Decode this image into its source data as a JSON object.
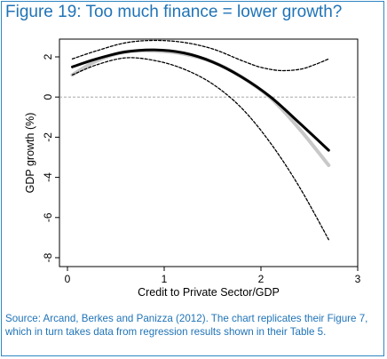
{
  "figure": {
    "title": "Figure 19: Too much finance = lower growth?",
    "source": "Source: Arcand, Berkes and Panizza (2012). The chart replicates their Figure 7, which in turn takes data from regression results shown in their Table 5."
  },
  "chart_data": {
    "type": "line",
    "xlabel": "Credit to Private Sector/GDP",
    "ylabel": "GDP growth (%)",
    "xlim": [
      0,
      3
    ],
    "ylim": [
      -8,
      2
    ],
    "xticks": [
      "0",
      "1",
      "2",
      "3"
    ],
    "yticks": [
      "2",
      "0",
      "-2",
      "-4",
      "-6",
      "-8"
    ],
    "reference_line_y": 0,
    "grid": false,
    "series": [
      {
        "role": "estimate",
        "style": "solid-black-thick",
        "color": "#000000",
        "x": [
          0.05,
          0.3,
          0.6,
          0.9,
          1.2,
          1.5,
          1.8,
          2.1,
          2.4,
          2.7
        ],
        "y": [
          1.5,
          1.9,
          2.25,
          2.35,
          2.2,
          1.75,
          1.0,
          0.0,
          -1.3,
          -2.65
        ]
      },
      {
        "role": "comparison",
        "style": "solid-gray-thick",
        "color": "#c8c8c8",
        "x": [
          0.05,
          0.3,
          0.6,
          0.9,
          1.2,
          1.5,
          1.8,
          2.1,
          2.4,
          2.7
        ],
        "y": [
          1.1,
          1.8,
          2.25,
          2.3,
          2.15,
          1.75,
          1.0,
          -0.05,
          -1.6,
          -3.4
        ]
      },
      {
        "role": "upper-bound",
        "style": "dotted-black",
        "color": "#000000",
        "x": [
          0.05,
          0.3,
          0.6,
          0.9,
          1.2,
          1.5,
          1.8,
          2.0,
          2.2,
          2.4,
          2.55,
          2.7
        ],
        "y": [
          1.9,
          2.3,
          2.7,
          2.82,
          2.72,
          2.4,
          1.82,
          1.48,
          1.32,
          1.38,
          1.6,
          1.9
        ]
      },
      {
        "role": "lower-bound",
        "style": "dotted-black",
        "color": "#000000",
        "x": [
          0.05,
          0.3,
          0.6,
          0.9,
          1.2,
          1.5,
          1.8,
          2.1,
          2.4,
          2.7
        ],
        "y": [
          1.1,
          1.6,
          1.95,
          1.82,
          1.4,
          0.65,
          -0.55,
          -2.3,
          -4.5,
          -7.1
        ]
      }
    ]
  }
}
